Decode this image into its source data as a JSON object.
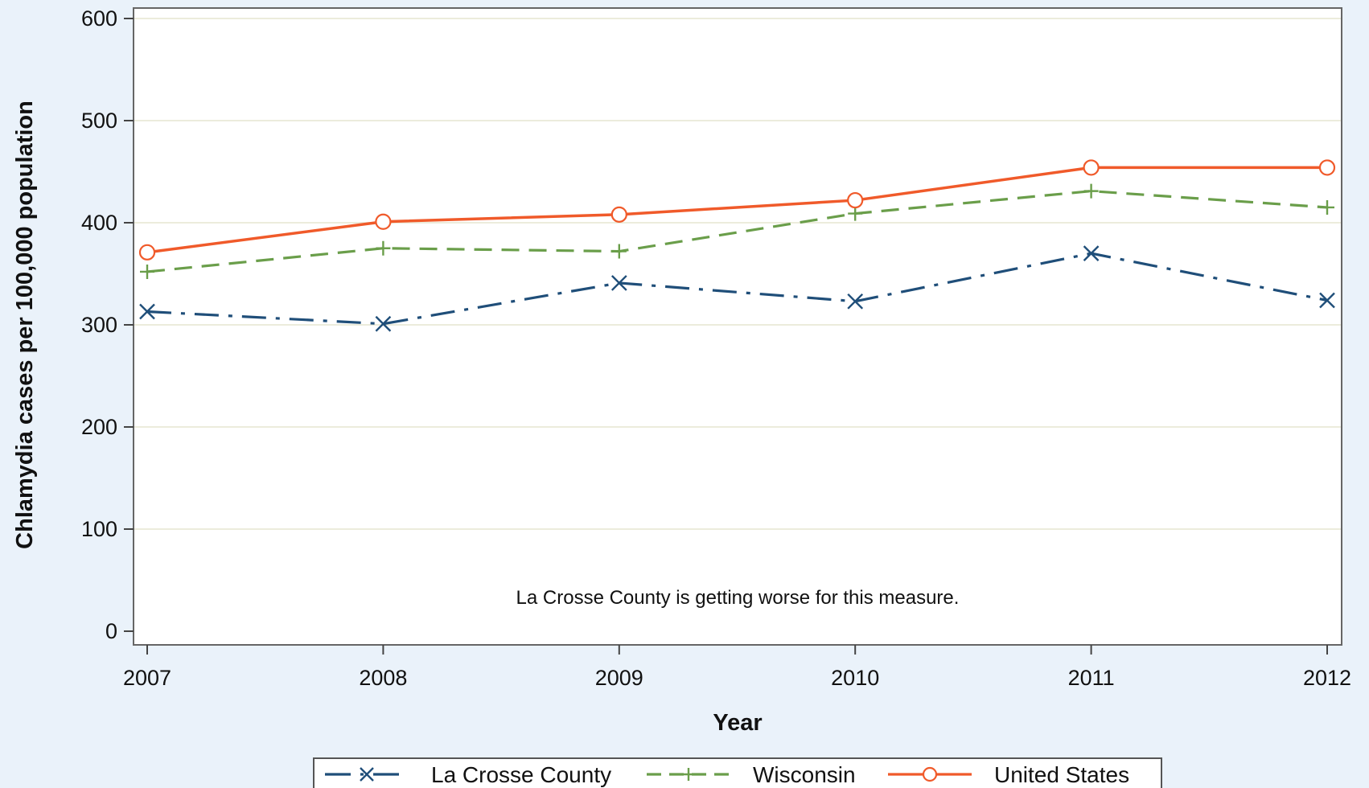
{
  "chart_data": {
    "type": "line",
    "xlabel": "Year",
    "ylabel": "Chlamydia cases per 100,000 population",
    "x": [
      2007,
      2008,
      2009,
      2010,
      2011,
      2012
    ],
    "x_tick_labels": [
      "2007",
      "2008",
      "2009",
      "2010",
      "2011",
      "2012"
    ],
    "ylim": [
      0,
      600
    ],
    "y_ticks": [
      0,
      100,
      200,
      300,
      400,
      500,
      600
    ],
    "y_tick_labels": [
      "0",
      "100",
      "200",
      "300",
      "400",
      "500",
      "600"
    ],
    "grid": true,
    "legend_position": "bottom",
    "annotation": "La Crosse County is getting worse for this measure.",
    "series": [
      {
        "name": "La Crosse County",
        "values": [
          313,
          301,
          341,
          323,
          370,
          324
        ],
        "color": "#1f4e79",
        "line_style": "dash-dot",
        "marker": "x"
      },
      {
        "name": "Wisconsin",
        "values": [
          352,
          375,
          372,
          409,
          431,
          415
        ],
        "color": "#6a9e4a",
        "line_style": "dashed",
        "marker": "plus"
      },
      {
        "name": "United States",
        "values": [
          371,
          401,
          408,
          422,
          454,
          454
        ],
        "color": "#f05a2a",
        "line_style": "solid",
        "marker": "circle"
      }
    ]
  }
}
